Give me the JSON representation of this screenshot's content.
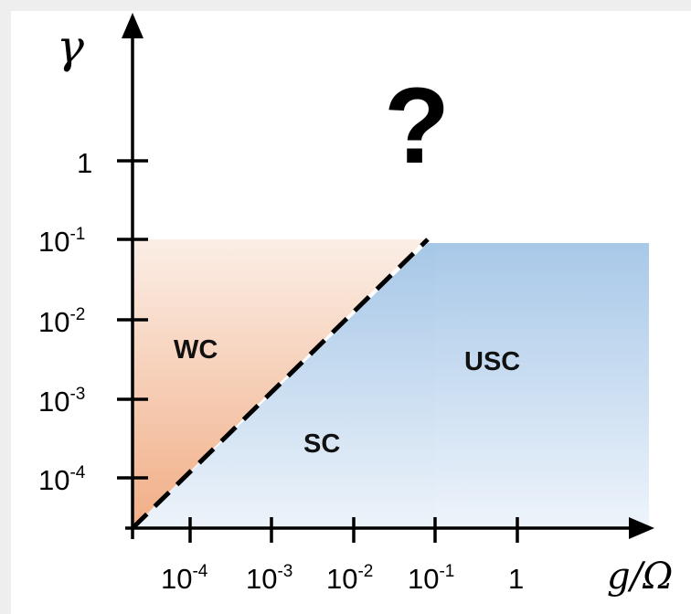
{
  "diagram": {
    "y_axis_label": "γ",
    "x_axis_label": "g/Ω",
    "y_ticks": [
      {
        "base": "1",
        "exp": ""
      },
      {
        "base": "10",
        "exp": "-1"
      },
      {
        "base": "10",
        "exp": "-2"
      },
      {
        "base": "10",
        "exp": "-3"
      },
      {
        "base": "10",
        "exp": "-4"
      }
    ],
    "x_ticks": [
      {
        "base": "10",
        "exp": "-4"
      },
      {
        "base": "10",
        "exp": "-3"
      },
      {
        "base": "10",
        "exp": "-2"
      },
      {
        "base": "10",
        "exp": "-1"
      },
      {
        "base": "1",
        "exp": ""
      }
    ],
    "regions": {
      "wc": "WC",
      "sc": "SC",
      "usc": "USC"
    },
    "unknown_marker": "?",
    "colors": {
      "wc_fill": "#f2b48e",
      "sc_usc_fill": "#a9c9e8",
      "axis": "#000000",
      "threshold_dotted_red": "#e53a2a",
      "threshold_dotted_blue": "#2f4e8a"
    }
  }
}
